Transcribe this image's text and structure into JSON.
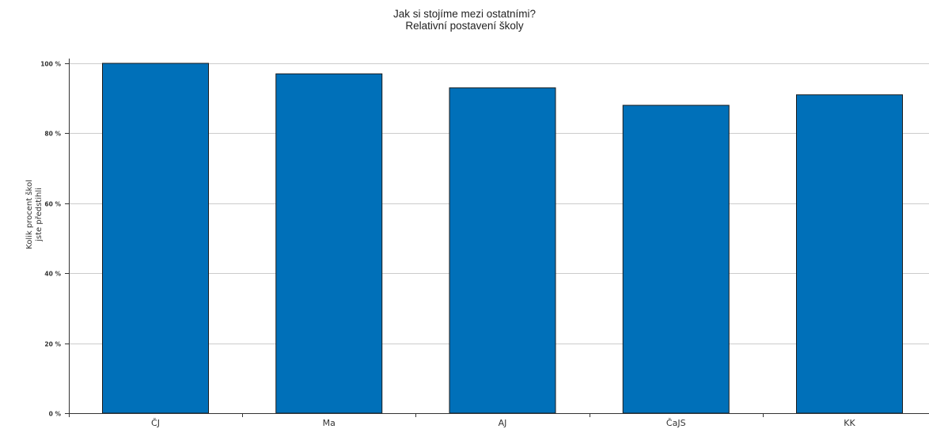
{
  "chart_data": {
    "type": "bar",
    "title": [
      "Jak si stojíme mezi ostatními?",
      "Relativní postavení školy"
    ],
    "xlabel": "",
    "ylabel": [
      "Kolik procent škol",
      "jste předstihli"
    ],
    "categories": [
      "ČJ",
      "Ma",
      "AJ",
      "ČaJS",
      "KK"
    ],
    "values": [
      100,
      97,
      93,
      88,
      91
    ],
    "ylim": [
      0,
      100
    ],
    "yticks": [
      0,
      20,
      40,
      60,
      80,
      100
    ],
    "ytick_labels": [
      "0 %",
      "20 %",
      "40 %",
      "60 %",
      "80 %",
      "100 %"
    ],
    "bar_color": "#0070b9",
    "bar_edge_color": "#1a1a1a",
    "grid": true,
    "grid_color": "#cccccc",
    "legend": "none"
  }
}
